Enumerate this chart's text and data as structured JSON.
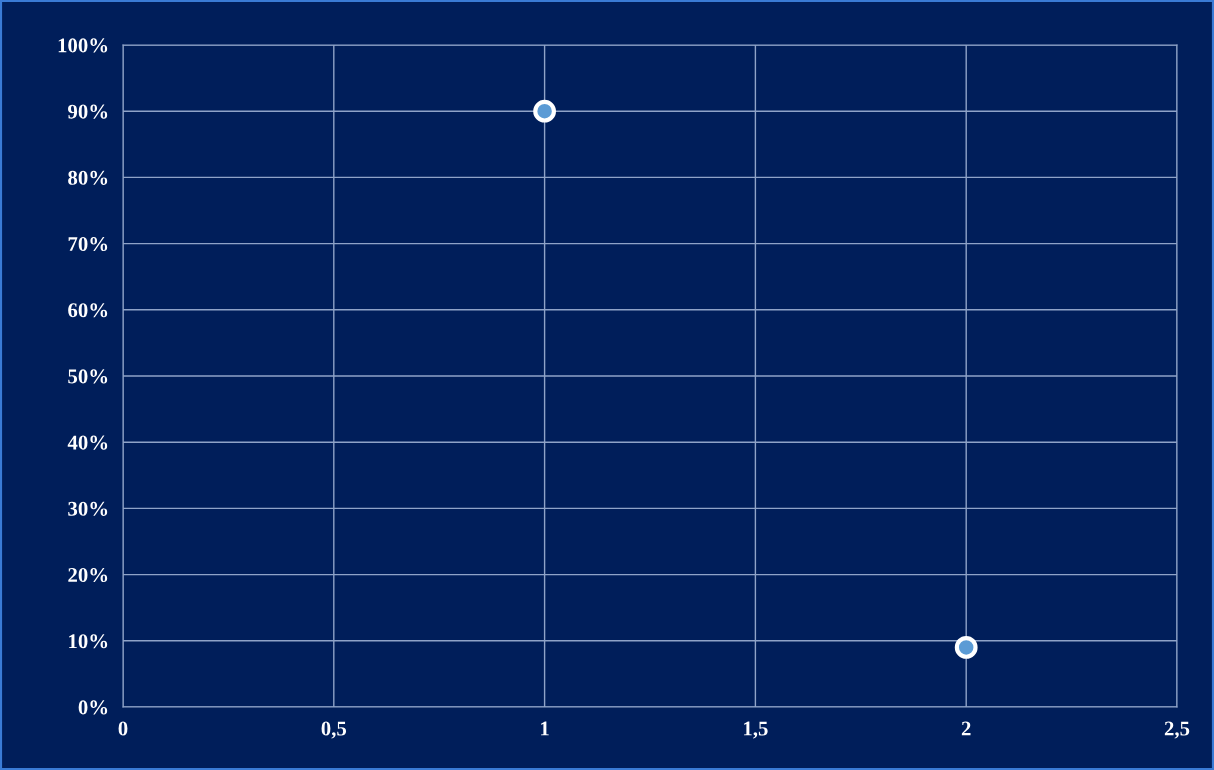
{
  "chart_data": {
    "type": "scatter",
    "x": [
      1,
      2
    ],
    "series": [
      {
        "color": "#5b9bd5",
        "values": [
          90,
          9
        ]
      }
    ],
    "xlim": [
      0,
      2.5
    ],
    "xticks": [
      0,
      {
        "value": 0.5,
        "label": "0,5"
      },
      1,
      {
        "value": 1.5,
        "label": "1,5"
      },
      2,
      {
        "value": 2.5,
        "label": "2,5"
      }
    ],
    "ylim": [
      0,
      100
    ],
    "yticks": [
      {
        "value": 0,
        "label": "0%"
      },
      {
        "value": 10,
        "label": "10%"
      },
      {
        "value": 20,
        "label": "20%"
      },
      {
        "value": 30,
        "label": "30%"
      },
      {
        "value": 40,
        "label": "40%"
      },
      {
        "value": 50,
        "label": "50%"
      },
      {
        "value": 60,
        "label": "60%"
      },
      {
        "value": 70,
        "label": "70%"
      },
      {
        "value": 80,
        "label": "80%"
      },
      {
        "value": 90,
        "label": "90%"
      },
      {
        "value": 100,
        "label": "100%"
      }
    ],
    "grid": true,
    "marker": "circle"
  }
}
